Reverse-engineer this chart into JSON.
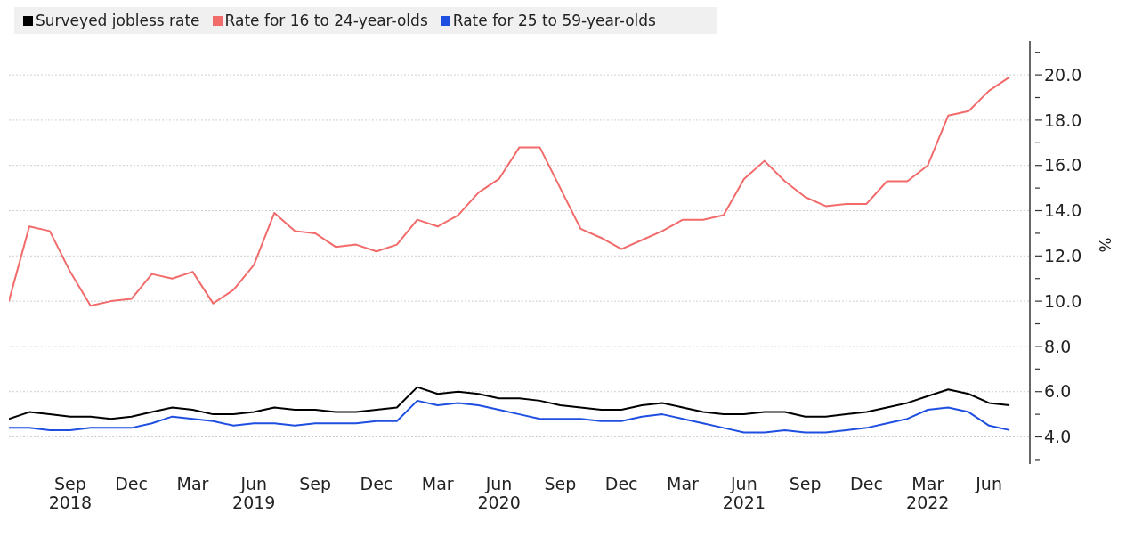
{
  "chart_data": {
    "type": "line",
    "ylabel": "%",
    "legend": "top left",
    "grid": "y",
    "marker": "none",
    "line_style": "solid",
    "x": [
      "2018-06",
      "2018-07",
      "2018-08",
      "2018-09",
      "2018-10",
      "2018-11",
      "2018-12",
      "2019-01",
      "2019-02",
      "2019-03",
      "2019-04",
      "2019-05",
      "2019-06",
      "2019-07",
      "2019-08",
      "2019-09",
      "2019-10",
      "2019-11",
      "2019-12",
      "2020-01",
      "2020-02",
      "2020-03",
      "2020-04",
      "2020-05",
      "2020-06",
      "2020-07",
      "2020-08",
      "2020-09",
      "2020-10",
      "2020-11",
      "2020-12",
      "2021-01",
      "2021-02",
      "2021-03",
      "2021-04",
      "2021-05",
      "2021-06",
      "2021-07",
      "2021-08",
      "2021-09",
      "2021-10",
      "2021-11",
      "2021-12",
      "2022-01",
      "2022-02",
      "2022-03",
      "2022-04",
      "2022-05",
      "2022-06",
      "2022-07"
    ],
    "xlim": [
      "2018-06",
      "2022-08"
    ],
    "xticks": [
      {
        "value": "2018-09",
        "label": "Sep\n2018"
      },
      {
        "value": "2018-12",
        "label": "Dec"
      },
      {
        "value": "2019-03",
        "label": "Mar"
      },
      {
        "value": "2019-06",
        "label": "Jun\n2019"
      },
      {
        "value": "2019-09",
        "label": "Sep"
      },
      {
        "value": "2019-12",
        "label": "Dec"
      },
      {
        "value": "2020-03",
        "label": "Mar"
      },
      {
        "value": "2020-06",
        "label": "Jun\n2020"
      },
      {
        "value": "2020-09",
        "label": "Sep"
      },
      {
        "value": "2020-12",
        "label": "Dec"
      },
      {
        "value": "2021-03",
        "label": "Mar"
      },
      {
        "value": "2021-06",
        "label": "Jun\n2021"
      },
      {
        "value": "2021-09",
        "label": "Sep"
      },
      {
        "value": "2021-12",
        "label": "Dec"
      },
      {
        "value": "2022-03",
        "label": "Mar\n2022"
      },
      {
        "value": "2022-06",
        "label": "Jun"
      }
    ],
    "ylim": [
      2.8,
      21.5
    ],
    "yticks": [
      {
        "value": 3,
        "label": null
      },
      {
        "value": 4,
        "label": "4.0"
      },
      {
        "value": 5,
        "label": null
      },
      {
        "value": 6,
        "label": "6.0"
      },
      {
        "value": 7,
        "label": null
      },
      {
        "value": 8,
        "label": "8.0"
      },
      {
        "value": 9,
        "label": null
      },
      {
        "value": 10,
        "label": "10.0"
      },
      {
        "value": 11,
        "label": null
      },
      {
        "value": 12,
        "label": "12.0"
      },
      {
        "value": 13,
        "label": null
      },
      {
        "value": 14,
        "label": "14.0"
      },
      {
        "value": 15,
        "label": null
      },
      {
        "value": 16,
        "label": "16.0"
      },
      {
        "value": 17,
        "label": null
      },
      {
        "value": 18,
        "label": "18.0"
      },
      {
        "value": 19,
        "label": null
      },
      {
        "value": 20,
        "label": "20.0"
      },
      {
        "value": 21,
        "label": null
      }
    ],
    "series": [
      {
        "name": "Surveyed jobless rate",
        "color": "#000000",
        "values": [
          4.8,
          5.1,
          5.0,
          4.9,
          4.9,
          4.8,
          4.9,
          5.1,
          5.3,
          5.2,
          5.0,
          5.0,
          5.1,
          5.3,
          5.2,
          5.2,
          5.1,
          5.1,
          5.2,
          5.3,
          6.2,
          5.9,
          6.0,
          5.9,
          5.7,
          5.7,
          5.6,
          5.4,
          5.3,
          5.2,
          5.2,
          5.4,
          5.5,
          5.3,
          5.1,
          5.0,
          5.0,
          5.1,
          5.1,
          4.9,
          4.9,
          5.0,
          5.1,
          5.3,
          5.5,
          5.8,
          6.1,
          5.9,
          5.5,
          5.4
        ]
      },
      {
        "name": "Rate for 16 to 24-year-olds",
        "color": "#f26b6b",
        "values": [
          10.0,
          13.3,
          13.1,
          11.3,
          9.8,
          10.0,
          10.1,
          11.2,
          11.0,
          11.3,
          9.9,
          10.5,
          11.6,
          13.9,
          13.1,
          13.0,
          12.4,
          12.5,
          12.2,
          12.5,
          13.6,
          13.3,
          13.8,
          14.8,
          15.4,
          16.8,
          16.8,
          15.0,
          13.2,
          12.8,
          12.3,
          12.7,
          13.1,
          13.6,
          13.6,
          13.8,
          15.4,
          16.2,
          15.3,
          14.6,
          14.2,
          14.3,
          14.3,
          15.3,
          15.3,
          16.0,
          18.2,
          18.4,
          19.3,
          19.9
        ]
      },
      {
        "name": "Rate for 25 to 59-year-olds",
        "color": "#1f4fe0",
        "values": [
          4.4,
          4.4,
          4.3,
          4.3,
          4.4,
          4.4,
          4.4,
          4.6,
          4.9,
          4.8,
          4.7,
          4.5,
          4.6,
          4.6,
          4.5,
          4.6,
          4.6,
          4.6,
          4.7,
          4.7,
          5.6,
          5.4,
          5.5,
          5.4,
          5.2,
          5.0,
          4.8,
          4.8,
          4.8,
          4.7,
          4.7,
          4.9,
          5.0,
          4.8,
          4.6,
          4.4,
          4.2,
          4.2,
          4.3,
          4.2,
          4.2,
          4.3,
          4.4,
          4.6,
          4.8,
          5.2,
          5.3,
          5.1,
          4.5,
          4.3
        ]
      }
    ]
  }
}
